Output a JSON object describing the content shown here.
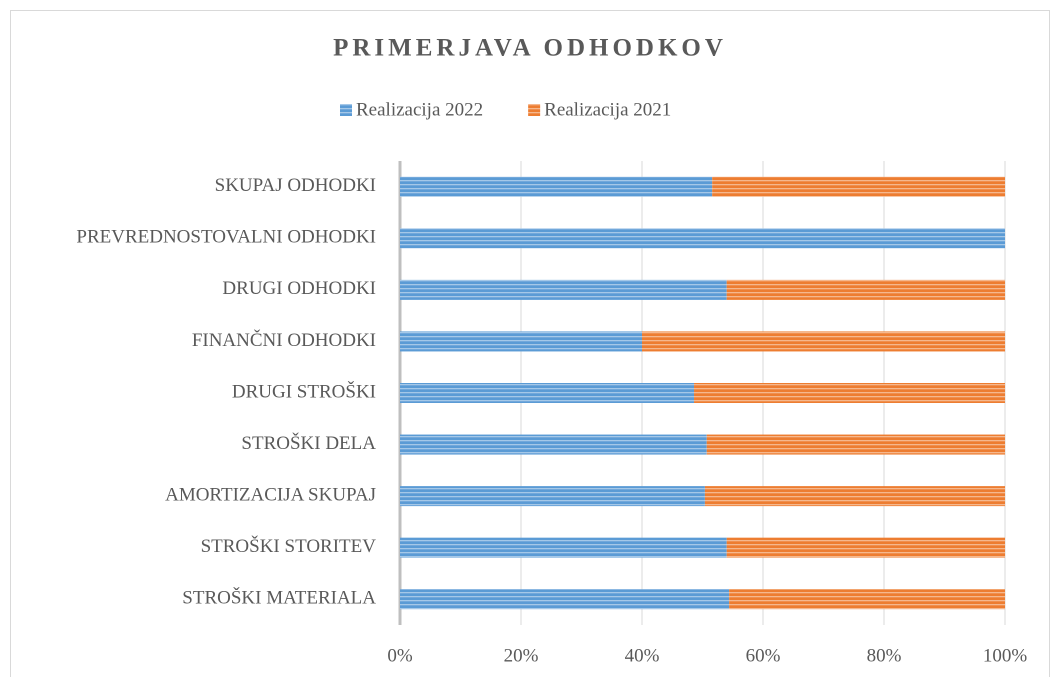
{
  "chart_data": {
    "type": "stacked_bar_horizontal",
    "title": "PRIMERJAVA ODHODKOV",
    "categories": [
      "SKUPAJ ODHODKI",
      "PREVREDNOSTOVALNI ODHODKI",
      "DRUGI ODHODKI",
      "FINANČNI ODHODKI",
      "DRUGI STROŠKI",
      "STROŠKI DELA",
      "AMORTIZACIJA SKUPAJ",
      "STROŠKI STORITEV",
      "STROŠKI MATERIALA"
    ],
    "series": [
      {
        "name": "Realizacija 2022",
        "color": "#5b9bd5",
        "values": [
          51.6,
          100,
          54,
          40,
          48.6,
          50.7,
          50.4,
          54,
          54.4
        ]
      },
      {
        "name": "Realizacija 2021",
        "color": "#ed7d31",
        "values": [
          48.4,
          0,
          46,
          60,
          51.4,
          49.3,
          49.6,
          46,
          45.6
        ]
      }
    ],
    "xlim": [
      0,
      100
    ],
    "xticks": [
      {
        "value": 0,
        "label": "0%"
      },
      {
        "value": 20,
        "label": "20%"
      },
      {
        "value": 40,
        "label": "40%"
      },
      {
        "value": 60,
        "label": "60%"
      },
      {
        "value": 80,
        "label": "80%"
      },
      {
        "value": 100,
        "label": "100%"
      }
    ],
    "grid": true,
    "legend": "top"
  }
}
